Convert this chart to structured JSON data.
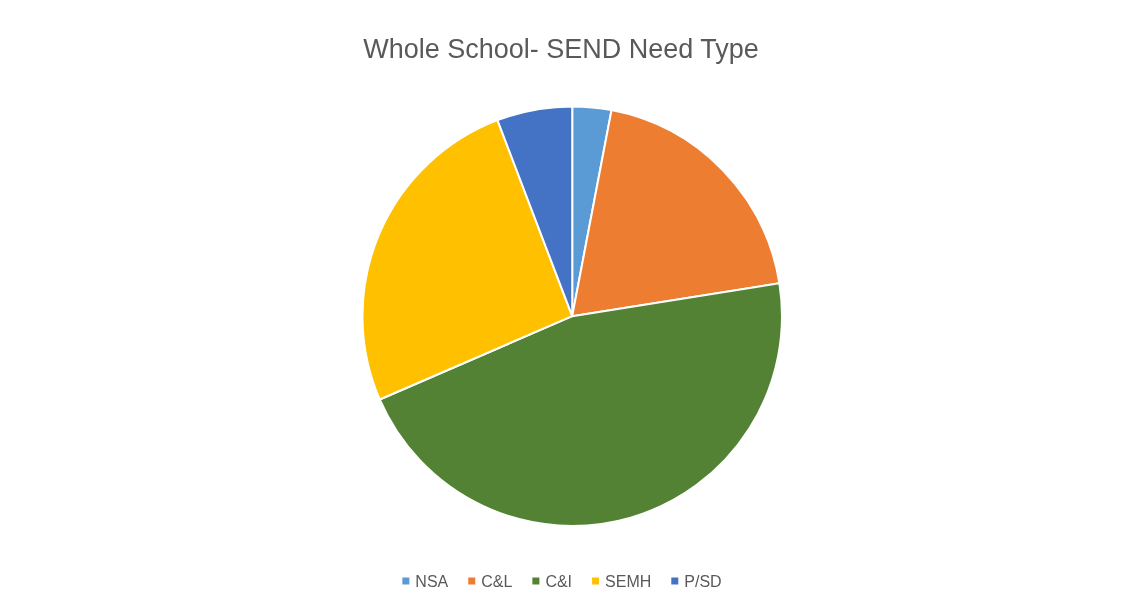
{
  "chart_data": {
    "type": "pie",
    "title": "Whole School- SEND Need Type",
    "categories": [
      "NSA",
      "C&L",
      "C&I",
      "SEMH",
      "P/SD"
    ],
    "values": [
      3,
      19.5,
      46,
      25.7,
      5.8
    ],
    "colors": [
      "#5b9bd5",
      "#ed7d31",
      "#548235",
      "#ffc000",
      "#4472c4"
    ],
    "legend": "bottom"
  }
}
